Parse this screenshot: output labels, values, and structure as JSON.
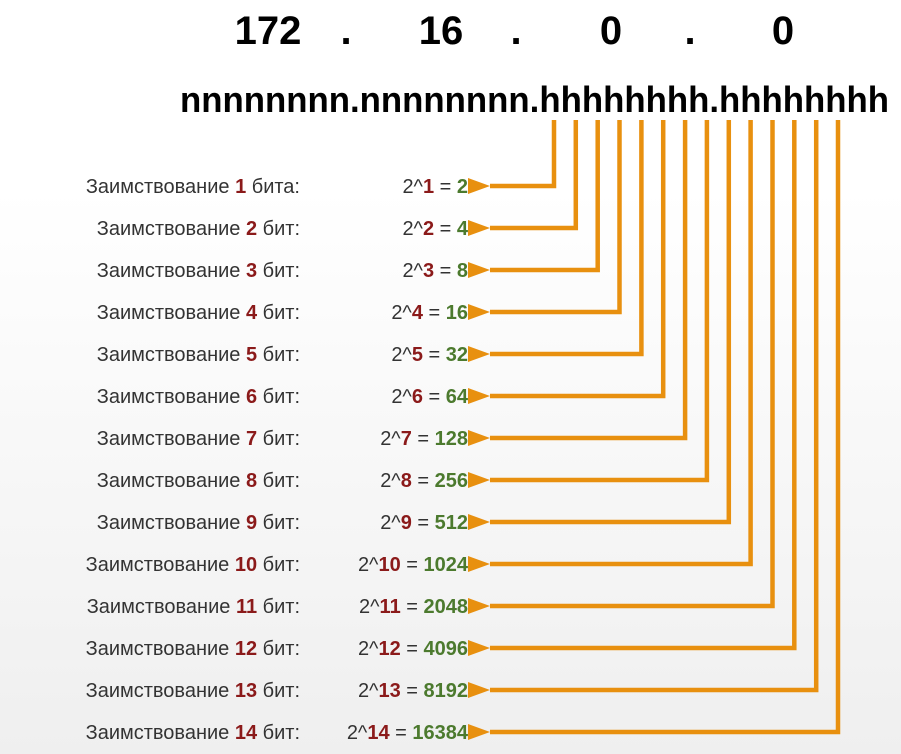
{
  "ip_address": {
    "octets": [
      "172",
      "16",
      "0",
      "0"
    ],
    "separator": "."
  },
  "bit_pattern": "nnnnnnnn.nnnnnnnn.hhhhhhhh.hhhhhhhh",
  "colors": {
    "borrow_number": "#8b1a1a",
    "result_value": "#4c7a2e",
    "arrow": "#e8900f",
    "text": "#333333"
  },
  "rows": [
    {
      "prefix": "Заимствование ",
      "bits": "1",
      "suffix": " бита:",
      "base": "2^",
      "exp": "1",
      "eq": " = ",
      "result": "2"
    },
    {
      "prefix": "Заимствование ",
      "bits": "2",
      "suffix": " бит:",
      "base": "2^",
      "exp": "2",
      "eq": " = ",
      "result": "4"
    },
    {
      "prefix": "Заимствование ",
      "bits": "3",
      "suffix": " бит:",
      "base": "2^",
      "exp": "3",
      "eq": " = ",
      "result": "8"
    },
    {
      "prefix": "Заимствование ",
      "bits": "4",
      "suffix": " бит:",
      "base": "2^",
      "exp": "4",
      "eq": " = ",
      "result": "16"
    },
    {
      "prefix": "Заимствование ",
      "bits": "5",
      "suffix": " бит:",
      "base": "2^",
      "exp": "5",
      "eq": " = ",
      "result": "32"
    },
    {
      "prefix": "Заимствование ",
      "bits": "6",
      "suffix": " бит:",
      "base": "2^",
      "exp": "6",
      "eq": " = ",
      "result": "64"
    },
    {
      "prefix": "Заимствование ",
      "bits": "7",
      "suffix": " бит:",
      "base": "2^",
      "exp": "7",
      "eq": " = ",
      "result": "128"
    },
    {
      "prefix": "Заимствование ",
      "bits": "8",
      "suffix": " бит:",
      "base": "2^",
      "exp": "8",
      "eq": " = ",
      "result": "256"
    },
    {
      "prefix": "Заимствование ",
      "bits": "9",
      "suffix": " бит:",
      "base": "2^",
      "exp": "9",
      "eq": " = ",
      "result": "512"
    },
    {
      "prefix": "Заимствование ",
      "bits": "10",
      "suffix": " бит:",
      "base": "2^",
      "exp": "10",
      "eq": " = ",
      "result": "1024"
    },
    {
      "prefix": "Заимствование ",
      "bits": "11",
      "suffix": " бит:",
      "base": "2^",
      "exp": "11",
      "eq": " = ",
      "result": "2048"
    },
    {
      "prefix": "Заимствование ",
      "bits": "12",
      "suffix": " бит:",
      "base": "2^",
      "exp": "12",
      "eq": " = ",
      "result": "4096"
    },
    {
      "prefix": "Заимствование ",
      "bits": "13",
      "suffix": " бит:",
      "base": "2^",
      "exp": "13",
      "eq": " = ",
      "result": "8192"
    },
    {
      "prefix": "Заимствование ",
      "bits": "14",
      "suffix": " бит:",
      "base": "2^",
      "exp": "14",
      "eq": " = ",
      "result": "16384"
    }
  ]
}
